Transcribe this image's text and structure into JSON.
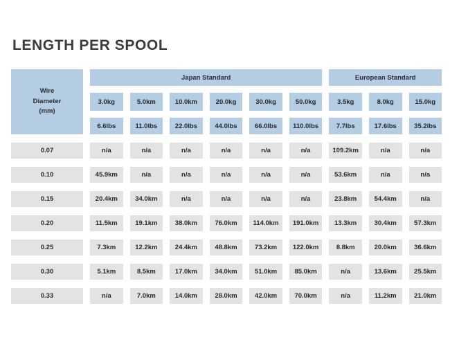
{
  "page": {
    "title": "LENGTH PER SPOOL"
  },
  "colors": {
    "header_blue": "#b5cde2",
    "cell_gray": "#e3e3e3",
    "text": "#2a2a2e",
    "title": "#3c3c3c",
    "background": "#ffffff"
  },
  "chart_data": {
    "type": "table",
    "title": "LENGTH PER SPOOL",
    "row_header_label": "Wire\nDiameter\n(mm)",
    "groups": [
      {
        "label": "Japan Standard",
        "span": 6
      },
      {
        "label": "European Standard",
        "span": 3
      }
    ],
    "spool_weights_kg": [
      "3.0kg",
      "5.0km",
      "10.0km",
      "20.0kg",
      "30.0kg",
      "50.0kg",
      "3.5kg",
      "8.0kg",
      "15.0kg"
    ],
    "spool_weights_lbs": [
      "6.6lbs",
      "11.0lbs",
      "22.0lbs",
      "44.0lbs",
      "66.0lbs",
      "110.0lbs",
      "7.7lbs",
      "17.6lbs",
      "35.2lbs"
    ],
    "rows": [
      {
        "diameter_mm": "0.07",
        "lengths": [
          "n/a",
          "n/a",
          "n/a",
          "n/a",
          "n/a",
          "n/a",
          "109.2km",
          "n/a",
          "n/a"
        ]
      },
      {
        "diameter_mm": "0.10",
        "lengths": [
          "45.9km",
          "n/a",
          "n/a",
          "n/a",
          "n/a",
          "n/a",
          "53.6km",
          "n/a",
          "n/a"
        ]
      },
      {
        "diameter_mm": "0.15",
        "lengths": [
          "20.4km",
          "34.0km",
          "n/a",
          "n/a",
          "n/a",
          "n/a",
          "23.8km",
          "54.4km",
          "n/a"
        ]
      },
      {
        "diameter_mm": "0.20",
        "lengths": [
          "11.5km",
          "19.1km",
          "38.0km",
          "76.0km",
          "114.0km",
          "191.0km",
          "13.3km",
          "30.4km",
          "57.3km"
        ]
      },
      {
        "diameter_mm": "0.25",
        "lengths": [
          "7.3km",
          "12.2km",
          "24.4km",
          "48.8km",
          "73.2km",
          "122.0km",
          "8.8km",
          "20.0km",
          "36.6km"
        ]
      },
      {
        "diameter_mm": "0.30",
        "lengths": [
          "5.1km",
          "8.5km",
          "17.0km",
          "34.0km",
          "51.0km",
          "85.0km",
          "n/a",
          "13.6km",
          "25.5km"
        ]
      },
      {
        "diameter_mm": "0.33",
        "lengths": [
          "n/a",
          "7.0km",
          "14.0km",
          "28.0km",
          "42.0km",
          "70.0km",
          "n/a",
          "11.2km",
          "21.0km"
        ]
      }
    ]
  }
}
